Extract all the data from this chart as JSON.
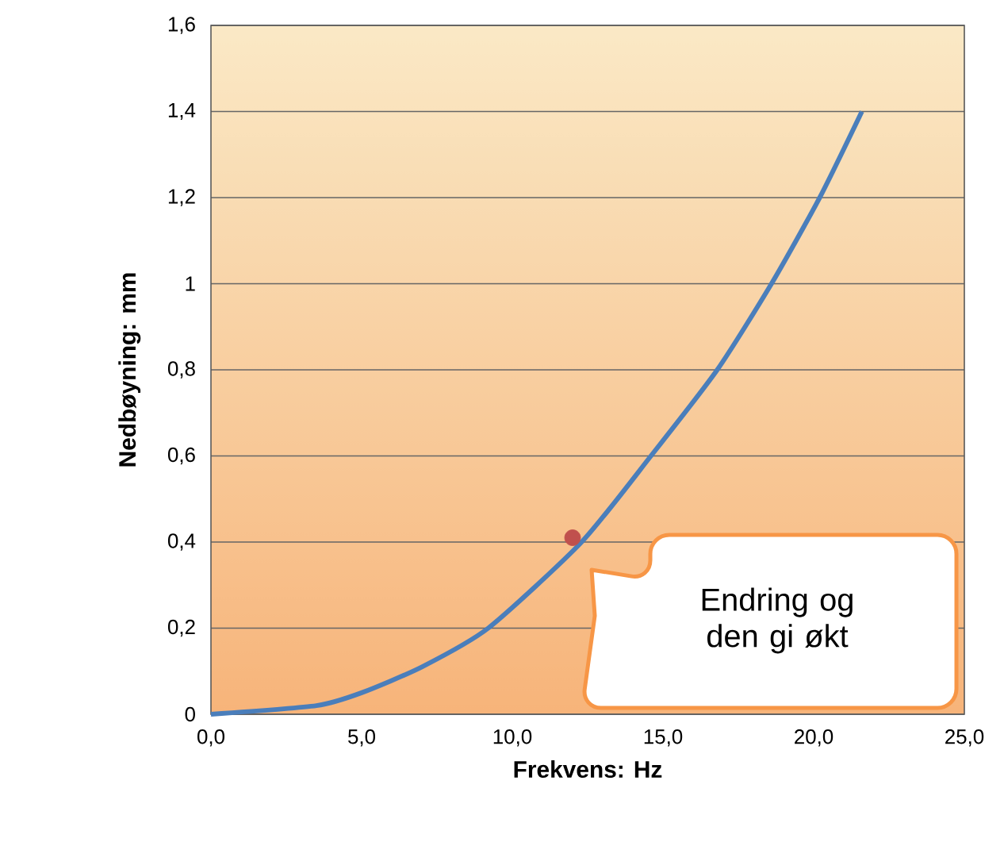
{
  "chart_data": {
    "type": "line",
    "xlabel": "Frekvens: Hz",
    "ylabel": "Nedbøyning: mm",
    "xlim": [
      0,
      25
    ],
    "ylim": [
      0,
      1.6
    ],
    "xticks": [
      {
        "value": 0,
        "label": "0,0"
      },
      {
        "value": 5,
        "label": "5,0"
      },
      {
        "value": 10,
        "label": "10,0"
      },
      {
        "value": 15,
        "label": "15,0"
      },
      {
        "value": 20,
        "label": "20,0"
      },
      {
        "value": 25,
        "label": "25,0"
      }
    ],
    "yticks": [
      0,
      {
        "value": 0.2,
        "label": "0,2"
      },
      {
        "value": 0.4,
        "label": "0,4"
      },
      {
        "value": 0.6,
        "label": "0,6"
      },
      {
        "value": 0.8,
        "label": "0,8"
      },
      1,
      {
        "value": 1.2,
        "label": "1,2"
      },
      {
        "value": 1.4,
        "label": "1,4"
      },
      {
        "value": 1.6,
        "label": "1,6"
      }
    ],
    "grid": "y",
    "marker": "none",
    "series": [
      {
        "color": "#4a7ebb",
        "x": [
          0,
          3.5,
          5.0,
          7.0,
          9.2,
          12.3,
          14.6,
          16.8,
          18.6,
          20.2,
          21.6
        ],
        "values": [
          0,
          0.02,
          0.05,
          0.11,
          0.2,
          0.4,
          0.6,
          0.8,
          1.0,
          1.2,
          1.4
        ]
      },
      {
        "type": "scatter",
        "color": "#c0504d",
        "marker": "circle",
        "x": [
          12.0
        ],
        "values": [
          0.41
        ]
      }
    ],
    "annotations": [
      "Endring og den gi økt"
    ]
  }
}
